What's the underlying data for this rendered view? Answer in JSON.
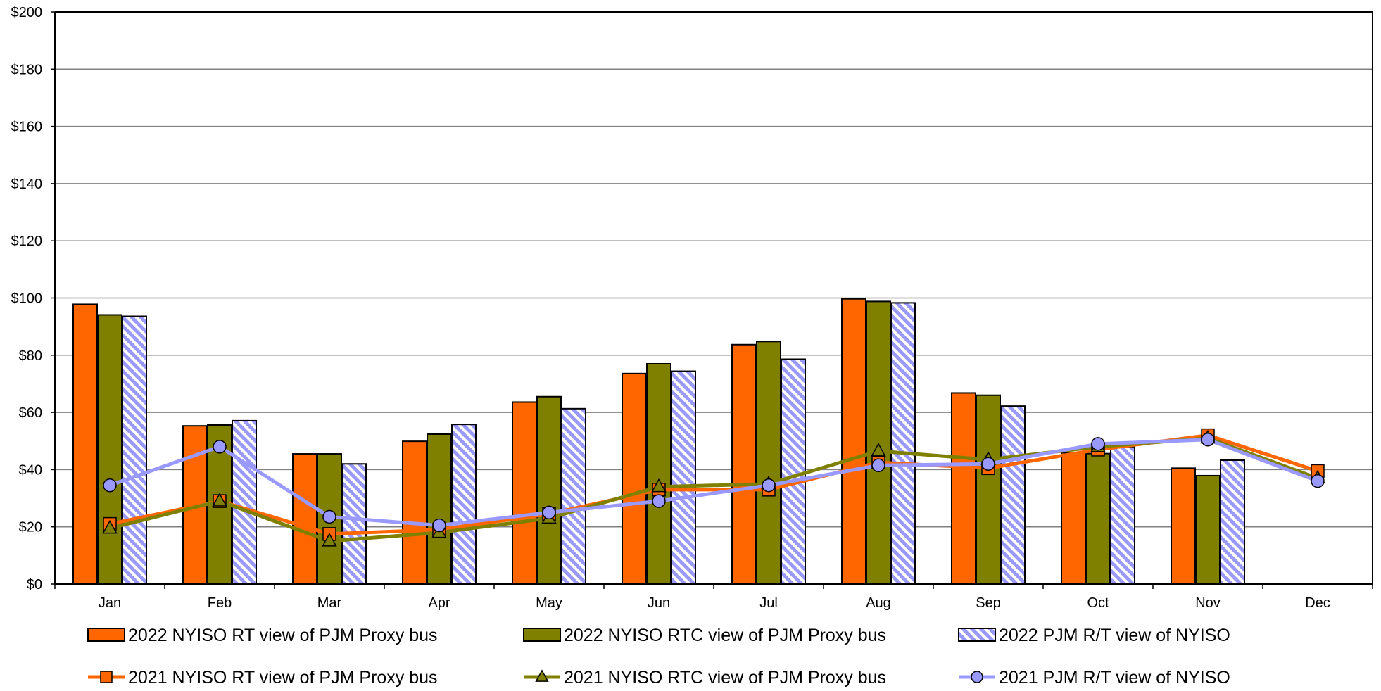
{
  "chart_data": {
    "type": "bar",
    "combo": "bar+line",
    "title": "",
    "xlabel": "",
    "ylabel": "",
    "ylim": [
      0,
      200
    ],
    "ytick_step": 20,
    "ytick_labels": [
      "$0",
      "$20",
      "$40",
      "$60",
      "$80",
      "$100",
      "$120",
      "$140",
      "$160",
      "$180",
      "$200"
    ],
    "grid": "horizontal",
    "legend_position": "bottom",
    "categories": [
      "Jan",
      "Feb",
      "Mar",
      "Apr",
      "May",
      "Jun",
      "Jul",
      "Aug",
      "Sep",
      "Oct",
      "Nov",
      "Dec"
    ],
    "bar_series": [
      {
        "name": "2022 NYISO RT view of PJM Proxy bus",
        "color": "#ff6600",
        "pattern": "solid",
        "values": [
          97.8,
          55.3,
          45.5,
          49.9,
          63.6,
          73.6,
          83.7,
          99.7,
          66.8,
          45.9,
          40.5,
          null
        ]
      },
      {
        "name": "2022 NYISO RTC view of PJM Proxy bus",
        "color": "#808000",
        "pattern": "solid",
        "values": [
          94.1,
          55.6,
          45.5,
          52.4,
          65.5,
          77.0,
          84.8,
          98.8,
          66.0,
          45.6,
          37.9,
          null
        ]
      },
      {
        "name": "2022 PJM R/T view of NYISO",
        "color": "#9999ff",
        "pattern": "hatch",
        "values": [
          93.6,
          57.1,
          42.0,
          55.8,
          61.3,
          74.4,
          78.6,
          98.3,
          62.2,
          48.0,
          43.3,
          null
        ]
      }
    ],
    "line_series": [
      {
        "name": "2021 NYISO RT view of PJM Proxy bus",
        "color": "#ff6600",
        "marker": "square",
        "values": [
          21.0,
          29.0,
          17.5,
          19.0,
          24.5,
          33.0,
          33.0,
          42.5,
          40.5,
          47.0,
          52.0,
          39.5
        ]
      },
      {
        "name": "2021 NYISO RTC view of PJM Proxy bus",
        "color": "#808000",
        "marker": "triangle",
        "values": [
          19.5,
          29.0,
          15.0,
          18.0,
          23.0,
          34.0,
          35.0,
          46.5,
          43.5,
          48.0,
          51.0,
          37.0
        ]
      },
      {
        "name": "2021 PJM R/T view of NYISO",
        "color": "#9999ff",
        "marker": "circle",
        "values": [
          34.5,
          48.0,
          23.5,
          20.5,
          25.0,
          29.0,
          34.5,
          41.5,
          42.0,
          49.0,
          50.5,
          36.0
        ]
      }
    ]
  }
}
